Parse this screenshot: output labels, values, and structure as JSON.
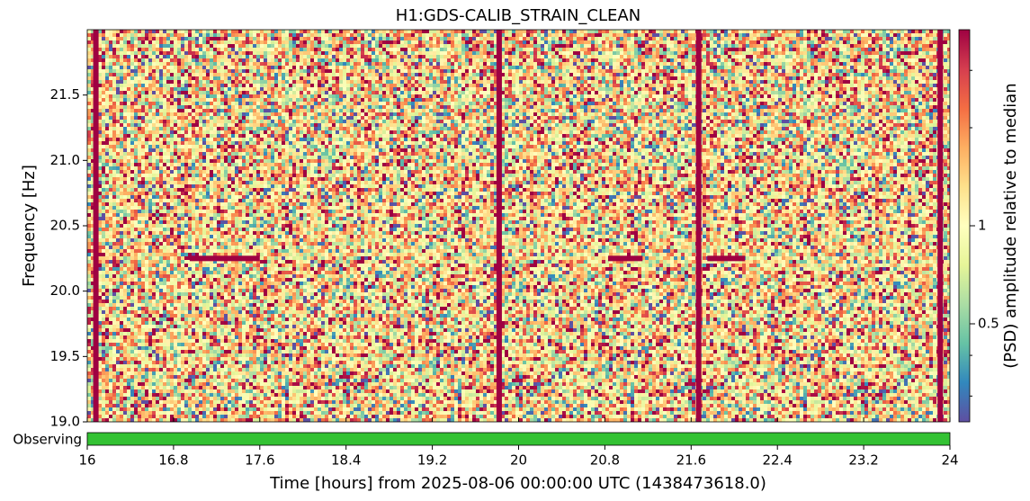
{
  "chart_data": {
    "type": "spectrogram",
    "title": "H1:GDS-CALIB_STRAIN_CLEAN",
    "x_label": "Time [hours] from 2025-08-06 00:00:00 UTC (1438473618.0)",
    "y_label": "Frequency [Hz]",
    "xlim": [
      16,
      24
    ],
    "xticks": [
      16,
      16.8,
      17.6,
      18.4,
      19.2,
      20,
      20.8,
      21.6,
      22.4,
      23.2,
      24
    ],
    "ylim": [
      19,
      22
    ],
    "yticks": [
      {
        "value": 19,
        "label": "19.0"
      },
      19.5,
      {
        "value": 20,
        "label": "20.0"
      },
      20.5,
      {
        "value": 21,
        "label": "21.0"
      },
      21.5
    ],
    "colorbar": {
      "label": "(PSD) amplitude relative to median",
      "log": true,
      "lim": [
        0.25,
        4
      ],
      "ticks": [
        0.5,
        1
      ],
      "minor_ticks": [
        0.3,
        0.4,
        2,
        3
      ]
    },
    "glitch_times": [
      16.08,
      19.82,
      21.67,
      23.91
    ],
    "line_features": [
      {
        "frequency": 20.25,
        "start": 16.95,
        "end": 17.6
      },
      {
        "frequency": 20.25,
        "start": 20.83,
        "end": 21.15
      },
      {
        "frequency": 20.25,
        "start": 21.75,
        "end": 22.1
      }
    ],
    "state": {
      "label": "Observing",
      "color": "#33c233",
      "segments": [
        [
          16,
          24
        ]
      ]
    }
  }
}
